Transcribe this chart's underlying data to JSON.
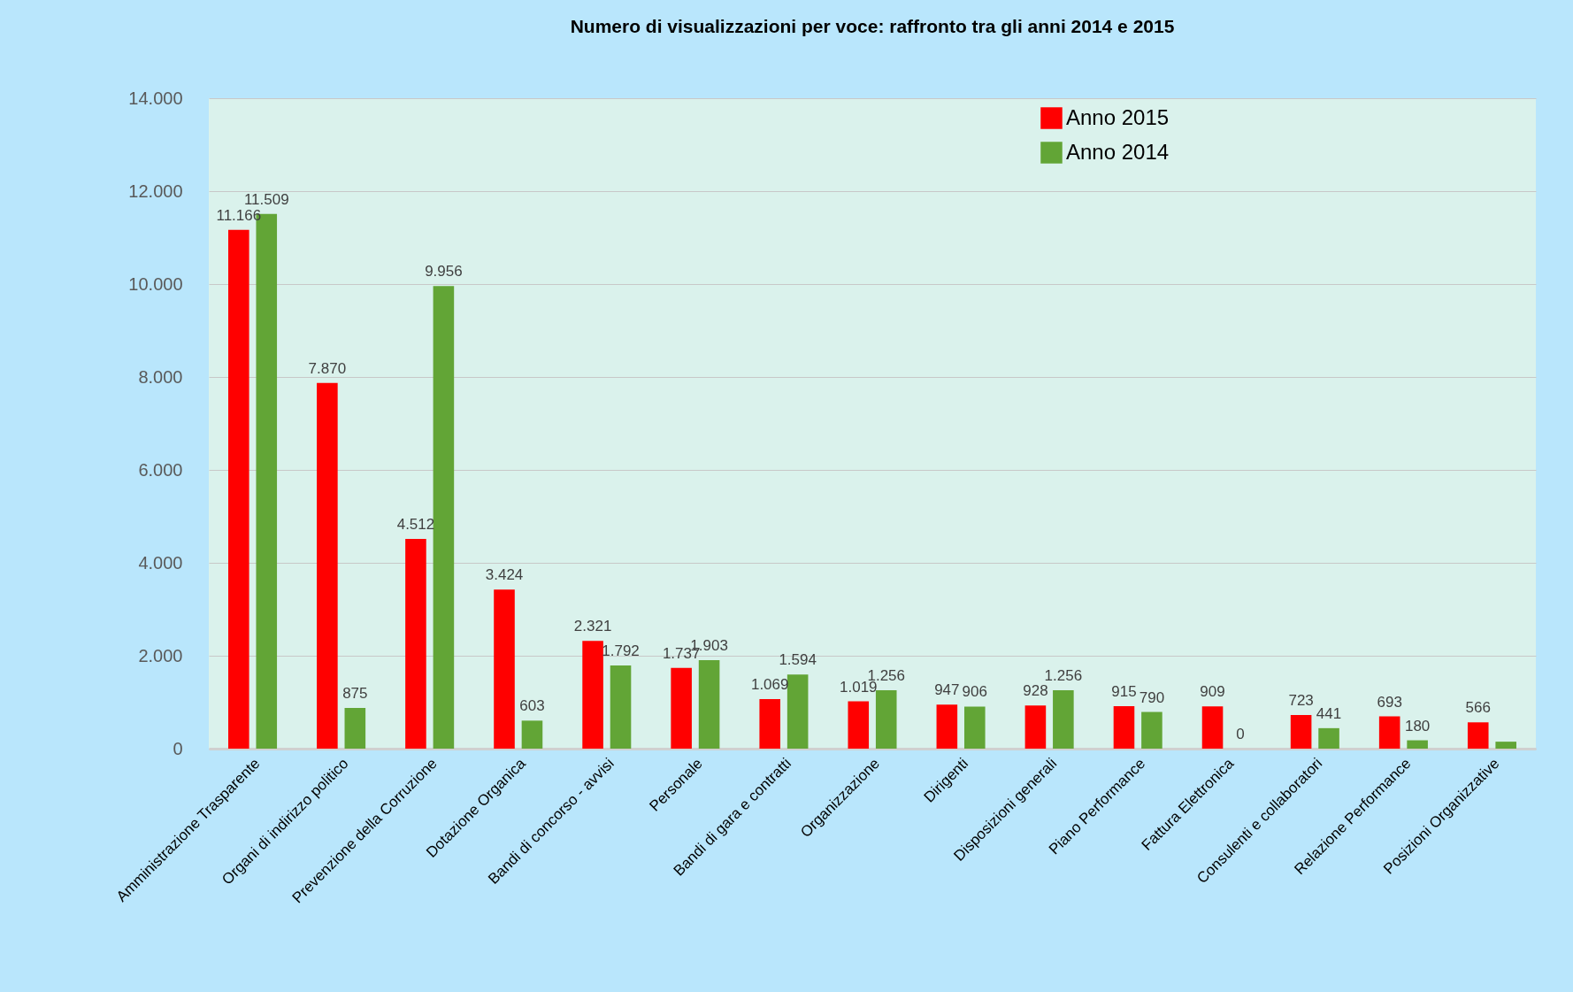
{
  "chart_data": {
    "type": "bar",
    "title": "Numero di visualizzazioni per voce: raffronto tra gli anni 2014 e 2015",
    "categories": [
      "Amministrazione Trasparente",
      "Organi di indirizzo politico",
      "Prevenzione della Corruzione",
      "Dotazione Organica",
      "Bandi di concorso - avvisi",
      "Personale",
      "Bandi di gara e contratti",
      "Organizzazione",
      "Dirigenti",
      "Disposizioni generali",
      "Piano Performance",
      "Fattura Elettronica",
      "Consulenti e collaboratori",
      "Relazione Performance",
      "Posizioni Organizzative"
    ],
    "series": [
      {
        "name": "Anno 2015",
        "color": "#ff0000",
        "values": [
          11166,
          7870,
          4512,
          3424,
          2321,
          1737,
          1069,
          1019,
          947,
          928,
          915,
          909,
          723,
          693,
          566
        ],
        "value_labels": [
          "11.166",
          "7.870",
          "4.512",
          "3.424",
          "2.321",
          "1.737",
          "1.069",
          "1.019",
          "947",
          "928",
          "915",
          "909",
          "723",
          "693",
          "566"
        ]
      },
      {
        "name": "Anno 2014",
        "color": "#62a536",
        "values": [
          11509,
          875,
          9956,
          603,
          1792,
          1903,
          1594,
          1256,
          906,
          1256,
          790,
          0,
          441,
          180,
          150
        ],
        "value_labels": [
          "11.509",
          "875",
          "9.956",
          "603",
          "1.792",
          "1.903",
          "1.594",
          "1.256",
          "906",
          "1.256",
          "790",
          "0",
          "441",
          "180",
          null
        ]
      }
    ],
    "ylim": [
      0,
      14000
    ],
    "yticks": [
      {
        "value": 0,
        "label": "0"
      },
      {
        "value": 2000,
        "label": "2.000"
      },
      {
        "value": 4000,
        "label": "4.000"
      },
      {
        "value": 6000,
        "label": "6.000"
      },
      {
        "value": 8000,
        "label": "8.000"
      },
      {
        "value": 10000,
        "label": "10.000"
      },
      {
        "value": 12000,
        "label": "12.000"
      },
      {
        "value": 14000,
        "label": "14.000"
      }
    ],
    "grid": "y",
    "legend": "top right"
  }
}
